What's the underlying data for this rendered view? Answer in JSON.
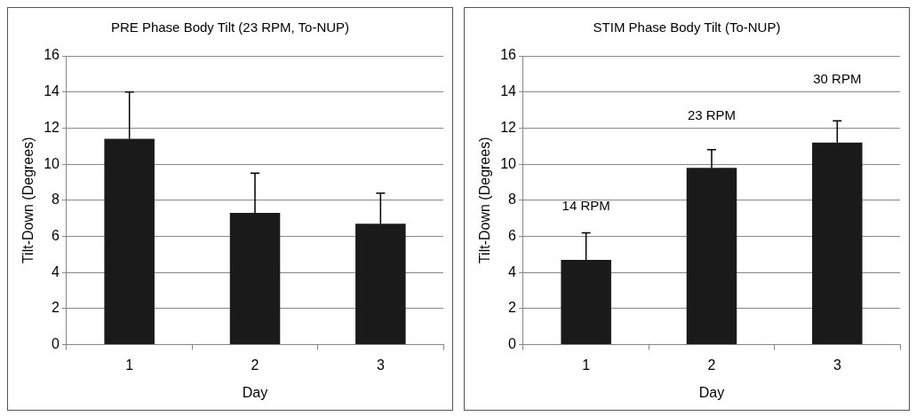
{
  "chart_data": [
    {
      "type": "bar",
      "title": "PRE Phase Body Tilt (23 RPM, To-NUP)",
      "xlabel": "Day",
      "ylabel": "Tilt-Down (Degrees)",
      "categories": [
        "1",
        "2",
        "3"
      ],
      "values": [
        11.4,
        7.3,
        6.7
      ],
      "errors": [
        [
          11.4,
          14.0
        ],
        [
          7.3,
          9.5
        ],
        [
          6.7,
          8.4
        ]
      ],
      "color": "#1a1a1a",
      "ylim": [
        0,
        16
      ],
      "yticks": [
        0,
        2,
        4,
        6,
        8,
        10,
        12,
        14,
        16
      ],
      "grid": "y",
      "legend": false
    },
    {
      "type": "bar",
      "title": "STIM Phase Body Tilt (To-NUP)",
      "xlabel": "Day",
      "ylabel": "Tilt-Down (Degrees)",
      "categories": [
        "1",
        "2",
        "3"
      ],
      "values": [
        4.7,
        9.8,
        11.2
      ],
      "errors": [
        [
          4.7,
          6.2
        ],
        [
          9.8,
          10.8
        ],
        [
          11.2,
          12.4
        ]
      ],
      "color": "#1a1a1a",
      "ylim": [
        0,
        16
      ],
      "yticks": [
        0,
        2,
        4,
        6,
        8,
        10,
        12,
        14,
        16
      ],
      "grid": "y",
      "legend": false,
      "annotations": [
        "14 RPM",
        "23 RPM",
        "30 RPM"
      ]
    }
  ]
}
